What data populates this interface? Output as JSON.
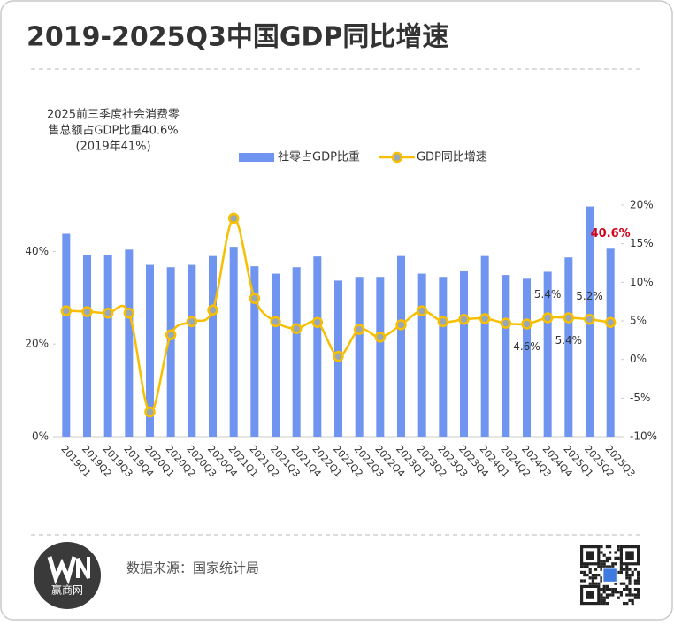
{
  "chart_data": {
    "type": "bar_line",
    "title": "2019-2025Q3中国GDP同比增速",
    "annotation": [
      "2025前三季度社会消费零",
      "售总额占GDP比重40.6%",
      "(2019年41%)"
    ],
    "source": "数据来源：国家统计局",
    "logo": "赢商网",
    "legend": "top",
    "categories": [
      "2019Q1",
      "2019Q2",
      "2019Q3",
      "2019Q4",
      "2020Q1",
      "2020Q2",
      "2020Q3",
      "2020Q4",
      "2021Q1",
      "2021Q2",
      "2021Q3",
      "2021Q4",
      "2022Q1",
      "2022Q2",
      "2022Q3",
      "2022Q4",
      "2023Q1",
      "2023Q2",
      "2023Q3",
      "2023Q4",
      "2024Q1",
      "2024Q2",
      "2024Q3",
      "2024Q4",
      "2025Q1",
      "2025Q2",
      "2025Q3"
    ],
    "series": [
      {
        "name": "社零占GDP比重",
        "type": "bar",
        "color": "#6f95f0",
        "values": [
          43.8,
          39.2,
          39.2,
          40.4,
          37.1,
          36.6,
          37.1,
          39.0,
          41.0,
          36.8,
          35.2,
          36.6,
          38.9,
          33.7,
          34.5,
          34.5,
          39.0,
          35.2,
          34.5,
          35.8,
          39.0,
          34.9,
          34.1,
          35.6,
          38.7,
          49.7,
          40.6
        ],
        "value_labels": [
          null,
          null,
          null,
          null,
          null,
          null,
          null,
          null,
          null,
          null,
          null,
          null,
          null,
          null,
          null,
          null,
          null,
          null,
          null,
          null,
          null,
          null,
          null,
          null,
          null,
          null,
          "40.6%"
        ],
        "label_color": "#d0021b"
      },
      {
        "name": "GDP同比增速",
        "type": "line",
        "axis": "y2",
        "color": "#f7bf00",
        "marker_color": "#9aa7b5",
        "values": [
          6.3,
          6.2,
          6.0,
          6.0,
          -6.8,
          3.2,
          4.9,
          6.4,
          18.3,
          7.9,
          4.9,
          4.0,
          4.8,
          0.4,
          3.9,
          2.9,
          4.5,
          6.3,
          4.9,
          5.2,
          5.3,
          4.7,
          4.6,
          5.4,
          5.4,
          5.2,
          4.8
        ],
        "value_labels": [
          null,
          null,
          null,
          null,
          null,
          null,
          null,
          null,
          null,
          null,
          null,
          null,
          null,
          null,
          null,
          null,
          null,
          null,
          null,
          null,
          null,
          null,
          "4.6%",
          "5.4%",
          "5.4%",
          "5.2%",
          null
        ]
      }
    ],
    "ylim": [
      0,
      50
    ],
    "yticks": [
      {
        "value": 0,
        "label": "0%"
      },
      {
        "value": 20,
        "label": "20%"
      },
      {
        "value": 40,
        "label": "40%"
      }
    ],
    "y2lim": [
      -10,
      20
    ],
    "y2ticks": [
      {
        "value": -10,
        "label": "-10%"
      },
      {
        "value": -5,
        "label": "-5%"
      },
      {
        "value": 0,
        "label": "0%"
      },
      {
        "value": 5,
        "label": "5%"
      },
      {
        "value": 10,
        "label": "10%"
      },
      {
        "value": 15,
        "label": "15%"
      },
      {
        "value": 20,
        "label": "20%"
      }
    ],
    "grid": false
  }
}
